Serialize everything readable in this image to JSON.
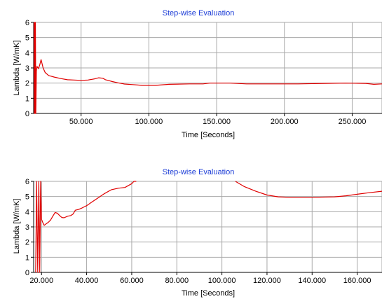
{
  "chart_data": [
    {
      "type": "line",
      "title": "Step-wise Evaluation",
      "xlabel": "Time [Seconds]",
      "ylabel": "Lambda [W/mK]",
      "xlim": [
        15000,
        272000
      ],
      "ylim": [
        0,
        6
      ],
      "grid": true,
      "x_ticks": [
        50000,
        100000,
        150000,
        200000,
        250000
      ],
      "x_tick_labels": [
        "50.000",
        "100.000",
        "150.000",
        "200.000",
        "250.000"
      ],
      "y_ticks": [
        0,
        1,
        2,
        3,
        4,
        5,
        6
      ],
      "y_tick_labels": [
        "0",
        "1",
        "2",
        "3",
        "4",
        "5",
        "6"
      ],
      "series": [
        {
          "color": "#e00000",
          "x": [
            15300,
            15500,
            15800,
            16100,
            16300,
            16600,
            17000,
            17500,
            18500,
            19500,
            20500,
            22000,
            23500,
            26000,
            30000,
            35000,
            40000,
            45000,
            50000,
            55000,
            58000,
            60000,
            63000,
            66000,
            68000,
            70000,
            73000,
            77000,
            82000,
            88000,
            95000,
            105000,
            115000,
            130000,
            140000,
            145000,
            160000,
            172000,
            190000,
            210000,
            230000,
            245000,
            260000,
            266000,
            272000
          ],
          "y": [
            6.0,
            0.0,
            6.0,
            0.0,
            6.0,
            0.0,
            2.8,
            3.1,
            2.95,
            3.2,
            3.55,
            3.0,
            2.7,
            2.5,
            2.4,
            2.3,
            2.22,
            2.2,
            2.18,
            2.2,
            2.25,
            2.28,
            2.35,
            2.32,
            2.22,
            2.18,
            2.1,
            2.02,
            1.94,
            1.9,
            1.85,
            1.85,
            1.92,
            1.95,
            1.95,
            2.0,
            2.0,
            1.95,
            1.95,
            1.95,
            1.98,
            2.0,
            1.98,
            1.92,
            1.95
          ]
        }
      ]
    },
    {
      "type": "line",
      "title": "Step-wise Evaluation",
      "xlabel": "Time [Seconds]",
      "ylabel": "Lambda [W/mK]",
      "xlim": [
        16500,
        171000
      ],
      "ylim": [
        0,
        6
      ],
      "grid": true,
      "x_ticks": [
        20000,
        40000,
        60000,
        80000,
        100000,
        120000,
        140000,
        160000
      ],
      "x_tick_labels": [
        "20.000",
        "40.000",
        "60.000",
        "80.000",
        "100.000",
        "120.000",
        "140.000",
        "160.000"
      ],
      "y_ticks": [
        0,
        1,
        2,
        3,
        4,
        5,
        6
      ],
      "y_tick_labels": [
        "0",
        "1",
        "2",
        "3",
        "4",
        "5",
        "6"
      ],
      "series": [
        {
          "color": "#e00000",
          "x": [
            17400,
            17800,
            18300,
            18800,
            19200,
            19600,
            20000,
            20500,
            21200,
            22000,
            23000,
            24000,
            25000,
            26000,
            27000,
            28000,
            29000,
            30000,
            31500,
            33000,
            34000,
            35000,
            36500,
            38000,
            40000,
            42000,
            45000,
            48000,
            51000,
            54000,
            57000,
            60000,
            61000,
            62000
          ],
          "y": [
            0.0,
            6.0,
            0.0,
            6.0,
            0.0,
            6.0,
            3.5,
            3.3,
            3.1,
            3.2,
            3.3,
            3.45,
            3.7,
            3.95,
            3.9,
            3.75,
            3.62,
            3.6,
            3.7,
            3.75,
            3.85,
            4.1,
            4.15,
            4.25,
            4.4,
            4.6,
            4.9,
            5.2,
            5.45,
            5.55,
            5.6,
            5.85,
            6.0,
            6.0
          ]
        },
        {
          "color": "#e00000",
          "x": [
            106000,
            110000,
            115000,
            120000,
            125000,
            130000,
            140000,
            150000,
            155000,
            160000,
            165000,
            171000
          ],
          "y": [
            6.0,
            5.65,
            5.35,
            5.1,
            4.98,
            4.95,
            4.95,
            4.98,
            5.05,
            5.15,
            5.25,
            5.35
          ]
        }
      ]
    }
  ]
}
